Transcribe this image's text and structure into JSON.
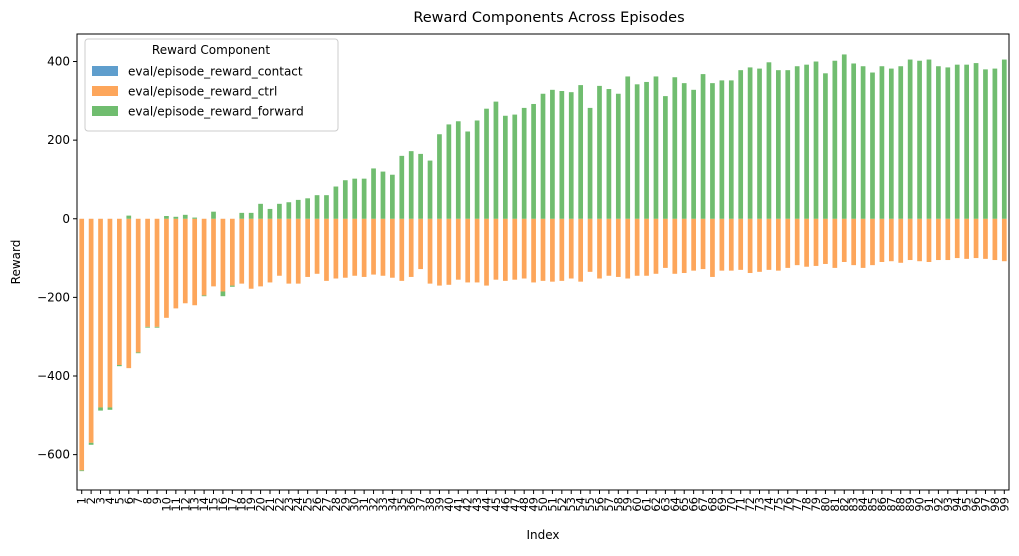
{
  "chart_data": {
    "type": "bar",
    "stacked": true,
    "title": "Reward Components Across Episodes",
    "xlabel": "Index",
    "ylabel": "Reward",
    "ylim": [
      -690,
      470
    ],
    "yticks": [
      -600,
      -400,
      -200,
      0,
      200,
      400
    ],
    "ytick_labels": [
      "−600",
      "−400",
      "−200",
      "0",
      "200",
      "400"
    ],
    "grid": false,
    "legend": {
      "title": "Reward Component",
      "position": "top-left"
    },
    "categories": [
      "1",
      "2",
      "3",
      "4",
      "5",
      "6",
      "7",
      "8",
      "9",
      "10",
      "11",
      "12",
      "13",
      "14",
      "15",
      "16",
      "17",
      "18",
      "19",
      "20",
      "21",
      "22",
      "23",
      "24",
      "25",
      "26",
      "27",
      "28",
      "29",
      "30",
      "31",
      "32",
      "33",
      "34",
      "35",
      "36",
      "37",
      "38",
      "39",
      "40",
      "41",
      "42",
      "43",
      "44",
      "45",
      "46",
      "47",
      "48",
      "49",
      "50",
      "51",
      "52",
      "53",
      "54",
      "55",
      "56",
      "57",
      "58",
      "59",
      "60",
      "61",
      "62",
      "63",
      "64",
      "65",
      "66",
      "67",
      "68",
      "69",
      "70",
      "71",
      "72",
      "73",
      "74",
      "75",
      "76",
      "77",
      "78",
      "79",
      "80",
      "81",
      "82",
      "83",
      "84",
      "85",
      "86",
      "87",
      "88",
      "89",
      "90",
      "91",
      "92",
      "93",
      "94",
      "95",
      "96",
      "97",
      "98",
      "99"
    ],
    "series": [
      {
        "name": "eval/episode_reward_contact",
        "color": "#5f9ecd",
        "values": [
          0,
          0,
          0,
          0,
          0,
          0,
          0,
          0,
          0,
          0,
          0,
          0,
          0,
          0,
          0,
          0,
          0,
          0,
          0,
          0,
          0,
          0,
          0,
          0,
          0,
          0,
          0,
          0,
          0,
          0,
          0,
          0,
          0,
          0,
          0,
          0,
          0,
          0,
          0,
          0,
          0,
          0,
          0,
          0,
          0,
          0,
          0,
          0,
          0,
          0,
          0,
          0,
          0,
          0,
          0,
          0,
          0,
          0,
          0,
          0,
          0,
          0,
          0,
          0,
          0,
          0,
          0,
          0,
          0,
          0,
          0,
          0,
          0,
          0,
          0,
          0,
          0,
          0,
          0,
          0,
          0,
          0,
          0,
          0,
          0,
          0,
          0,
          0,
          0,
          0,
          0,
          0,
          0,
          0,
          0,
          0,
          0,
          0,
          0
        ]
      },
      {
        "name": "eval/episode_reward_ctrl",
        "color": "#fda65b",
        "values": [
          -640,
          -570,
          -480,
          -480,
          -372,
          -380,
          -340,
          -275,
          -275,
          -252,
          -228,
          -215,
          -220,
          -195,
          -172,
          -185,
          -170,
          -165,
          -178,
          -172,
          -162,
          -145,
          -165,
          -165,
          -148,
          -140,
          -158,
          -152,
          -150,
          -145,
          -148,
          -142,
          -145,
          -150,
          -158,
          -148,
          -128,
          -165,
          -170,
          -168,
          -155,
          -162,
          -162,
          -170,
          -155,
          -158,
          -155,
          -152,
          -162,
          -158,
          -160,
          -158,
          -152,
          -160,
          -135,
          -152,
          -145,
          -148,
          -152,
          -145,
          -145,
          -140,
          -125,
          -140,
          -138,
          -132,
          -128,
          -148,
          -132,
          -132,
          -130,
          -138,
          -135,
          -130,
          -132,
          -125,
          -118,
          -122,
          -120,
          -115,
          -125,
          -110,
          -118,
          -125,
          -118,
          -110,
          -108,
          -112,
          -105,
          -108,
          -110,
          -105,
          -105,
          -100,
          -102,
          -100,
          -102,
          -105,
          -108
        ]
      },
      {
        "name": "eval/episode_reward_forward",
        "color": "#70bd6f",
        "values": [
          -2,
          -5,
          -8,
          -6,
          -3,
          8,
          -2,
          -2,
          -2,
          7,
          5,
          10,
          3,
          -2,
          18,
          -12,
          -3,
          15,
          15,
          38,
          25,
          38,
          42,
          48,
          52,
          60,
          60,
          82,
          98,
          102,
          102,
          128,
          120,
          112,
          160,
          172,
          165,
          148,
          215,
          240,
          248,
          222,
          250,
          280,
          298,
          262,
          265,
          282,
          292,
          318,
          328,
          325,
          322,
          340,
          282,
          338,
          330,
          318,
          362,
          342,
          348,
          362,
          312,
          360,
          345,
          328,
          368,
          345,
          352,
          352,
          378,
          385,
          382,
          398,
          378,
          378,
          388,
          392,
          400,
          370,
          402,
          418,
          395,
          388,
          372,
          388,
          382,
          388,
          405,
          402,
          405,
          388,
          385,
          392,
          392,
          396,
          380,
          382,
          405
        ]
      }
    ]
  }
}
